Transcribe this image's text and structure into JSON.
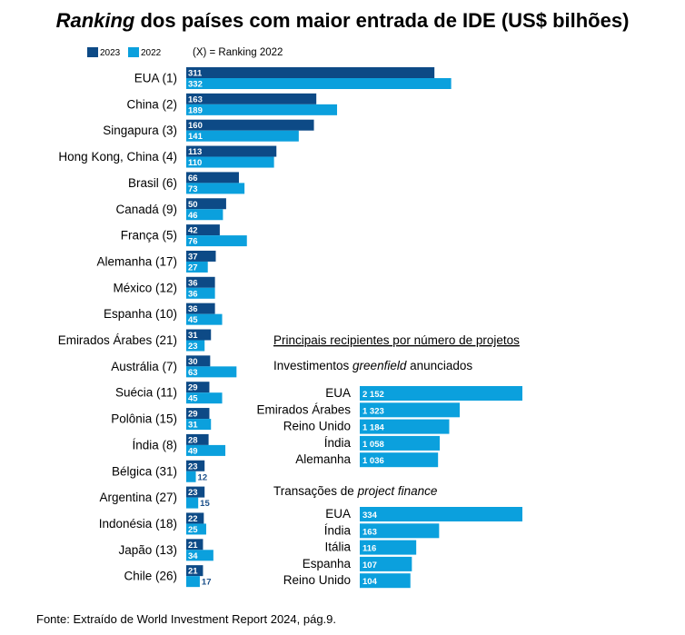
{
  "colors": {
    "y2023": "#0d4a86",
    "y2022": "#0ba0dd"
  },
  "title_italic": "Ranking",
  "title_rest": " dos países com maior entrada de IDE (US$ bilhões)",
  "legend": {
    "a": "2023",
    "b": "2022",
    "note": "(X) = Ranking 2022"
  },
  "source": "Fonte: Extraído de World Investment Report 2024, pág.9.",
  "inset_heading": "Principais recipientes por número  de projetos",
  "inset1_title_pre": "Investimentos ",
  "inset1_title_it": "greenfield",
  "inset1_title_post": " anunciados",
  "inset2_title_pre": "Transações de ",
  "inset2_title_it": "project finance",
  "chart_data": [
    {
      "type": "bar",
      "orientation": "horizontal",
      "categories": [
        "EUA (1)",
        "China (2)",
        "Singapura (3)",
        "Hong Kong, China (4)",
        "Brasil (6)",
        "Canadá (9)",
        "França (5)",
        "Alemanha (17)",
        "México (12)",
        "Espanha (10)",
        "Emirados Árabes (21)",
        "Austrália (7)",
        "Suécia (11)",
        "Polônia (15)",
        "Índia (8)",
        "Bélgica (31)",
        "Argentina (27)",
        "Indonésia (18)",
        "Japão (13)",
        "Chile (26)"
      ],
      "series": [
        {
          "name": "2023",
          "values": [
            311,
            163,
            160,
            113,
            66,
            50,
            42,
            37,
            36,
            36,
            31,
            30,
            29,
            29,
            28,
            23,
            23,
            22,
            21,
            21
          ]
        },
        {
          "name": "2022",
          "values": [
            332,
            189,
            141,
            110,
            73,
            46,
            76,
            27,
            36,
            45,
            23,
            63,
            45,
            31,
            49,
            12,
            15,
            25,
            34,
            17
          ]
        }
      ],
      "title": "Ranking dos países com maior entrada de IDE (US$ bilhões)",
      "legend": "top-left"
    },
    {
      "type": "bar",
      "orientation": "horizontal",
      "categories": [
        "EUA",
        "Emirados Árabes",
        "Reino Unido",
        "Índia",
        "Alemanha"
      ],
      "values": [
        2152,
        1323,
        1184,
        1058,
        1036
      ],
      "labels": [
        "2 152",
        "1 323",
        "1 184",
        "1 058",
        "1 036"
      ],
      "title": "Investimentos greenfield anunciados"
    },
    {
      "type": "bar",
      "orientation": "horizontal",
      "categories": [
        "EUA",
        "Índia",
        "Itália",
        "Espanha",
        "Reino Unido"
      ],
      "values": [
        334,
        163,
        116,
        107,
        104
      ],
      "labels": [
        "334",
        "163",
        "116",
        "107",
        "104"
      ],
      "title": "Transações de project finance"
    }
  ]
}
